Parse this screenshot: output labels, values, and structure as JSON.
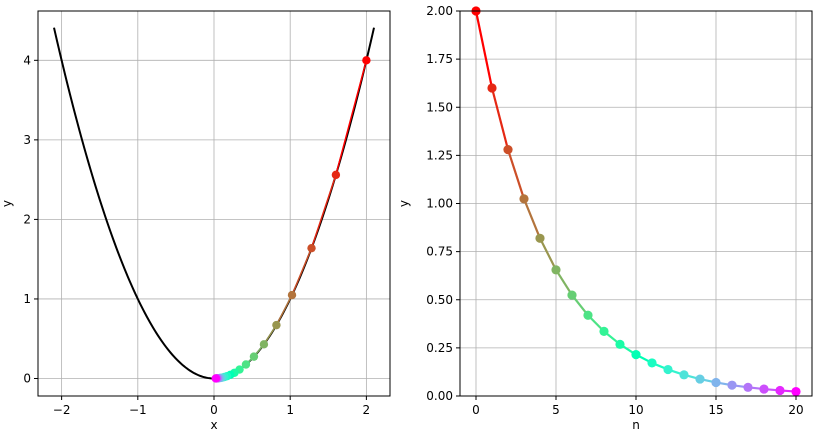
{
  "chart_data": [
    {
      "type": "line",
      "xlabel": "x",
      "ylabel": "y",
      "xlim": [
        -2.31,
        2.31
      ],
      "ylim": [
        -0.22,
        4.62
      ],
      "xticks": [
        -2,
        -1,
        0,
        1,
        2
      ],
      "xtick_labels": [
        "−2",
        "−1",
        "0",
        "1",
        "2"
      ],
      "yticks": [
        0,
        1,
        2,
        3,
        4
      ],
      "ytick_labels": [
        "0",
        "1",
        "2",
        "3",
        "4"
      ],
      "grid": true,
      "curve": {
        "function": "y = x^2",
        "x_range": [
          -2.1,
          2.1
        ],
        "color": "#000000"
      },
      "iterates": {
        "x": [
          2.0,
          1.6,
          1.28,
          1.024,
          0.8192,
          0.65536,
          0.524288,
          0.41943,
          0.335544,
          0.268435,
          0.214748,
          0.171799,
          0.137439,
          0.109951,
          0.087961,
          0.070369,
          0.056295,
          0.045036,
          0.036029,
          0.028823,
          0.023058
        ],
        "y": [
          4.0,
          2.56,
          1.6384,
          1.048576,
          0.671089,
          0.429497,
          0.274878,
          0.175922,
          0.11259,
          0.072058,
          0.046117,
          0.029515,
          0.018889,
          0.012089,
          0.007737,
          0.004952,
          0.003169,
          0.002028,
          0.001298,
          0.000831,
          0.000532
        ],
        "colormap": "rainbow",
        "color_order": "reversed"
      }
    },
    {
      "type": "line",
      "xlabel": "n",
      "ylabel": "y",
      "xlim": [
        -1,
        21
      ],
      "ylim": [
        0,
        2
      ],
      "xticks": [
        0,
        5,
        10,
        15,
        20
      ],
      "xtick_labels": [
        "0",
        "5",
        "10",
        "15",
        "20"
      ],
      "yticks": [
        0,
        0.25,
        0.5,
        0.75,
        1.0,
        1.25,
        1.5,
        1.75,
        2.0
      ],
      "ytick_labels": [
        "0.00",
        "0.25",
        "0.50",
        "0.75",
        "1.00",
        "1.25",
        "1.50",
        "1.75",
        "2.00"
      ],
      "grid": true,
      "x": [
        0,
        1,
        2,
        3,
        4,
        5,
        6,
        7,
        8,
        9,
        10,
        11,
        12,
        13,
        14,
        15,
        16,
        17,
        18,
        19,
        20
      ],
      "y": [
        2.0,
        1.6,
        1.28,
        1.024,
        0.8192,
        0.65536,
        0.524288,
        0.41943,
        0.335544,
        0.268435,
        0.214748,
        0.171799,
        0.137439,
        0.109951,
        0.087961,
        0.070369,
        0.056295,
        0.045036,
        0.036029,
        0.028823,
        0.023058
      ],
      "colormap": "rainbow",
      "color_order": "reversed"
    }
  ]
}
